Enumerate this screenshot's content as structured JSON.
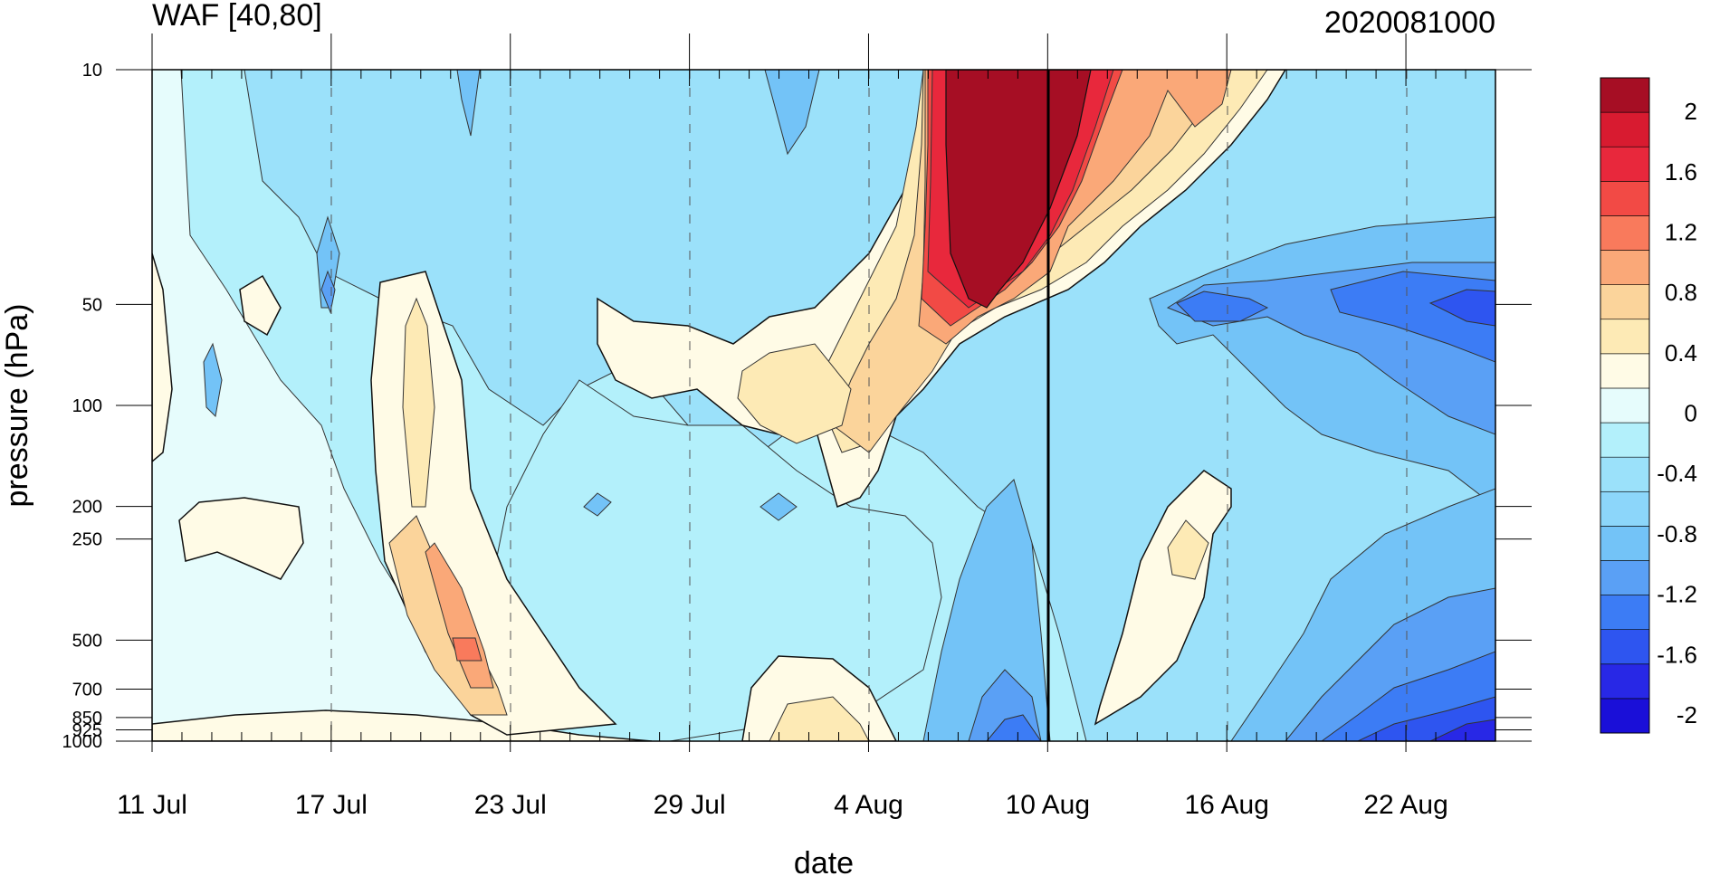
{
  "chart_data": {
    "type": "heatmap",
    "title": "WAF [40,80]",
    "title_right": "2020081000",
    "xlabel": "date",
    "ylabel": "pressure (hPa)",
    "x_tick_labels": [
      "11 Jul",
      "17 Jul",
      "23 Jul",
      "29 Jul",
      "4 Aug",
      "10 Aug",
      "16 Aug",
      "22 Aug"
    ],
    "x_range": [
      "11 Jul",
      "25 Aug"
    ],
    "y_tick_labels": [
      "10",
      "50",
      "100",
      "200",
      "250",
      "500",
      "700",
      "850",
      "925",
      "1000"
    ],
    "y_range": [
      1000,
      10
    ],
    "y_scale": "log",
    "marked_date": "10 Aug",
    "colorbar_labels": [
      "2",
      "1.6",
      "1.2",
      "0.8",
      "0.4",
      "0",
      "-0.4",
      "-0.8",
      "-1.2",
      "-1.6",
      "-2"
    ],
    "colorbar_levels": [
      -2.2,
      -2.0,
      -1.8,
      -1.6,
      -1.4,
      -1.2,
      -1.0,
      -0.8,
      -0.6,
      -0.4,
      -0.2,
      0,
      0.2,
      0.4,
      0.6,
      0.8,
      1.0,
      1.2,
      1.4,
      1.6,
      1.8,
      2.0,
      2.2
    ],
    "colorbar_colors": [
      "#1a0fd8",
      "#2828e6",
      "#2e55f0",
      "#3c7cf5",
      "#5aa0f5",
      "#73c3f7",
      "#8cd6fa",
      "#9be1fa",
      "#b3f0fb",
      "#e6fcfc",
      "#fffbe6",
      "#fdeab5",
      "#fbd49b",
      "#faa878",
      "#f97a5c",
      "#f24a45",
      "#e8283c",
      "#d81b30",
      "#a60e24"
    ],
    "legend_position": "right",
    "grid": "dashed vertical lines at date ticks"
  }
}
